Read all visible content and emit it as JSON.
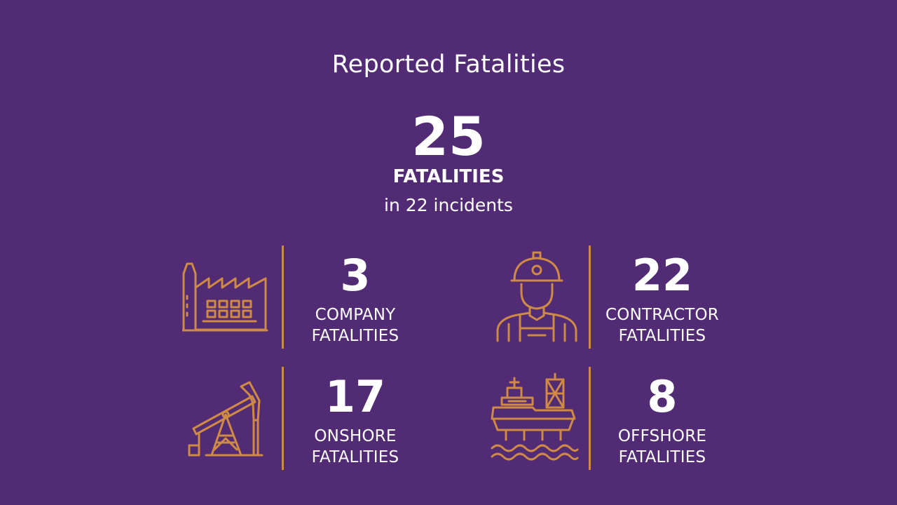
{
  "title": "Reported Fatalities",
  "total": {
    "number": "25",
    "label": "FATALITIES",
    "sub": "in 22 incidents"
  },
  "stats": [
    {
      "icon": "factory-icon",
      "number": "3",
      "line1": "COMPANY",
      "line2": "FATALITIES"
    },
    {
      "icon": "worker-icon",
      "number": "22",
      "line1": "CONTRACTOR",
      "line2": "FATALITIES"
    },
    {
      "icon": "pumpjack-icon",
      "number": "17",
      "line1": "ONSHORE",
      "line2": "FATALITIES"
    },
    {
      "icon": "offshore-platform-icon",
      "number": "8",
      "line1": "OFFSHORE",
      "line2": "FATALITIES"
    }
  ],
  "colors": {
    "background": "#512b74",
    "accent": "#cf8a45",
    "text": "#ffffff"
  }
}
